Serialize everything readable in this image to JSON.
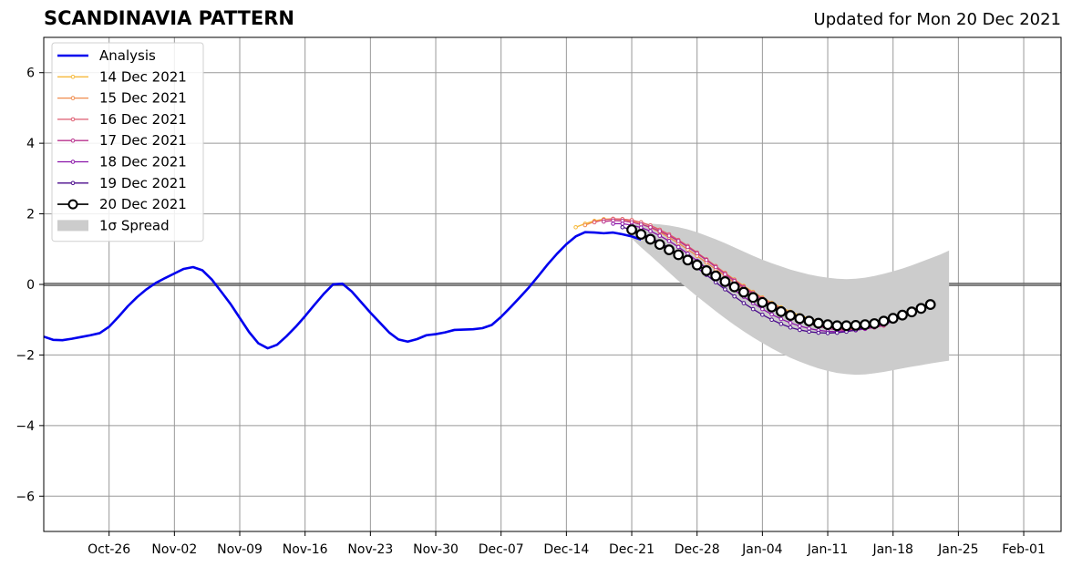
{
  "title": "SCANDINAVIA PATTERN",
  "updated": "Updated for Mon 20 Dec 2021",
  "chart_data": {
    "type": "line",
    "title": "SCANDINAVIA PATTERN",
    "xlabel": "",
    "ylabel": "",
    "ylim": [
      -7,
      7
    ],
    "xlim": [
      "2021-10-19",
      "2022-02-05"
    ],
    "grid": true,
    "legend_position": "top-left",
    "x_ticks": [
      "Oct-26",
      "Nov-02",
      "Nov-09",
      "Nov-16",
      "Nov-23",
      "Nov-30",
      "Dec-07",
      "Dec-14",
      "Dec-21",
      "Dec-28",
      "Jan-04",
      "Jan-11",
      "Jan-18",
      "Jan-25",
      "Feb-01"
    ],
    "x_tick_dates": [
      "2021-10-26",
      "2021-11-02",
      "2021-11-09",
      "2021-11-16",
      "2021-11-23",
      "2021-11-30",
      "2021-12-07",
      "2021-12-14",
      "2021-12-21",
      "2021-12-28",
      "2022-01-04",
      "2022-01-11",
      "2022-01-18",
      "2022-01-25",
      "2022-02-01"
    ],
    "y_ticks": [
      -6,
      -4,
      -2,
      0,
      2,
      4,
      6
    ],
    "y_tick_labels": [
      "−6",
      "−4",
      "−2",
      "0",
      "2",
      "4",
      "6"
    ],
    "colors": {
      "analysis": "#0000ee",
      "spread": "#cccccc",
      "grid": "#999999",
      "zero_line": "#555555"
    },
    "analysis": {
      "name": "Analysis",
      "color": "#0000ee",
      "start": "2021-10-19",
      "values": [
        -1.48,
        -1.57,
        -1.58,
        -1.54,
        -1.49,
        -1.44,
        -1.38,
        -1.2,
        -0.92,
        -0.62,
        -0.36,
        -0.14,
        0.04,
        0.18,
        0.31,
        0.44,
        0.49,
        0.4,
        0.14,
        -0.2,
        -0.55,
        -0.95,
        -1.35,
        -1.67,
        -1.81,
        -1.71,
        -1.47,
        -1.2,
        -0.9,
        -0.58,
        -0.27,
        0.0,
        0.02,
        -0.2,
        -0.5,
        -0.8,
        -1.08,
        -1.36,
        -1.56,
        -1.62,
        -1.55,
        -1.44,
        -1.41,
        -1.36,
        -1.29,
        -1.28,
        -1.27,
        -1.24,
        -1.15,
        -0.92,
        -0.65,
        -0.37,
        -0.08,
        0.24,
        0.57,
        0.87,
        1.14,
        1.36,
        1.48,
        1.47,
        1.45,
        1.47,
        1.42,
        1.36,
        1.27
      ]
    },
    "spread": {
      "name": "1σ Spread",
      "start": "2021-12-21",
      "upper": [
        1.7,
        1.72,
        1.72,
        1.7,
        1.67,
        1.62,
        1.56,
        1.48,
        1.38,
        1.28,
        1.17,
        1.05,
        0.93,
        0.81,
        0.7,
        0.6,
        0.51,
        0.42,
        0.35,
        0.28,
        0.23,
        0.19,
        0.16,
        0.15,
        0.16,
        0.19,
        0.24,
        0.3,
        0.37,
        0.45,
        0.54,
        0.64,
        0.74,
        0.84,
        0.96
      ],
      "lower": [
        1.3,
        1.05,
        0.82,
        0.58,
        0.34,
        0.1,
        -0.12,
        -0.34,
        -0.55,
        -0.76,
        -0.96,
        -1.15,
        -1.33,
        -1.5,
        -1.66,
        -1.81,
        -1.95,
        -2.08,
        -2.19,
        -2.29,
        -2.38,
        -2.45,
        -2.51,
        -2.54,
        -2.56,
        -2.55,
        -2.52,
        -2.48,
        -2.43,
        -2.38,
        -2.33,
        -2.29,
        -2.24,
        -2.2,
        -2.16
      ]
    },
    "forecasts": [
      {
        "name": "14 Dec 2021",
        "color": "#f6b93b",
        "start": "2021-12-15",
        "values": [
          1.62,
          1.72,
          1.8,
          1.85,
          1.86,
          1.85,
          1.82,
          1.76,
          1.67,
          1.55,
          1.41,
          1.25,
          1.08,
          0.9,
          0.71,
          0.52,
          0.33,
          0.14,
          -0.04,
          -0.21,
          -0.37,
          -0.52,
          -0.65,
          -0.77,
          -0.87,
          -0.96,
          -1.04,
          -1.1
        ]
      },
      {
        "name": "15 Dec 2021",
        "color": "#f08a4b",
        "start": "2021-12-16",
        "values": [
          1.68,
          1.78,
          1.83,
          1.85,
          1.84,
          1.79,
          1.71,
          1.61,
          1.48,
          1.33,
          1.17,
          0.99,
          0.81,
          0.62,
          0.43,
          0.24,
          0.05,
          -0.12,
          -0.28,
          -0.43,
          -0.57,
          -0.7,
          -0.82,
          -0.93,
          -1.03,
          -1.12,
          -1.18,
          -1.23,
          -1.25,
          -1.25,
          -1.22,
          -1.18,
          -1.14
        ]
      },
      {
        "name": "16 Dec 2021",
        "color": "#de5a6f",
        "start": "2021-12-17",
        "values": [
          1.76,
          1.83,
          1.86,
          1.85,
          1.82,
          1.76,
          1.67,
          1.55,
          1.42,
          1.26,
          1.09,
          0.9,
          0.71,
          0.52,
          0.32,
          0.13,
          -0.06,
          -0.23,
          -0.39,
          -0.54,
          -0.68,
          -0.81,
          -0.93,
          -1.03,
          -1.12,
          -1.2,
          -1.25,
          -1.28,
          -1.28,
          -1.26,
          -1.22,
          -1.17
        ]
      },
      {
        "name": "17 Dec 2021",
        "color": "#b8318d",
        "start": "2021-12-18",
        "values": [
          1.78,
          1.81,
          1.8,
          1.76,
          1.7,
          1.62,
          1.51,
          1.38,
          1.23,
          1.06,
          0.88,
          0.69,
          0.49,
          0.29,
          0.1,
          -0.09,
          -0.27,
          -0.44,
          -0.6,
          -0.75,
          -0.88,
          -1.0,
          -1.11,
          -1.19,
          -1.25,
          -1.29,
          -1.3,
          -1.29,
          -1.26,
          -1.22,
          -1.16
        ]
      },
      {
        "name": "18 Dec 2021",
        "color": "#8a14a8",
        "start": "2021-12-19",
        "values": [
          1.72,
          1.72,
          1.68,
          1.61,
          1.51,
          1.38,
          1.23,
          1.06,
          0.87,
          0.67,
          0.46,
          0.25,
          0.04,
          -0.16,
          -0.35,
          -0.53,
          -0.7,
          -0.85,
          -0.98,
          -1.09,
          -1.18,
          -1.25,
          -1.3,
          -1.33,
          -1.34,
          -1.33,
          -1.3,
          -1.26,
          -1.2,
          -1.13,
          -1.05
        ]
      },
      {
        "name": "19 Dec 2021",
        "color": "#4b0c8c",
        "start": "2021-12-20",
        "values": [
          1.62,
          1.55,
          1.45,
          1.33,
          1.19,
          1.03,
          0.86,
          0.67,
          0.47,
          0.27,
          0.06,
          -0.14,
          -0.34,
          -0.53,
          -0.7,
          -0.86,
          -1.0,
          -1.12,
          -1.22,
          -1.29,
          -1.34,
          -1.37,
          -1.38,
          -1.37,
          -1.34,
          -1.29,
          -1.22,
          -1.14,
          -1.05,
          -0.96,
          -0.86,
          -0.77
        ]
      },
      {
        "name": "20 Dec 2021",
        "color": "#000000",
        "start": "2021-12-21",
        "values": [
          1.55,
          1.42,
          1.28,
          1.13,
          0.98,
          0.84,
          0.69,
          0.55,
          0.39,
          0.24,
          0.08,
          -0.07,
          -0.22,
          -0.37,
          -0.51,
          -0.64,
          -0.77,
          -0.88,
          -0.97,
          -1.04,
          -1.1,
          -1.14,
          -1.17,
          -1.17,
          -1.16,
          -1.14,
          -1.11,
          -1.04,
          -0.96,
          -0.87,
          -0.78,
          -0.68,
          -0.57
        ]
      }
    ]
  }
}
